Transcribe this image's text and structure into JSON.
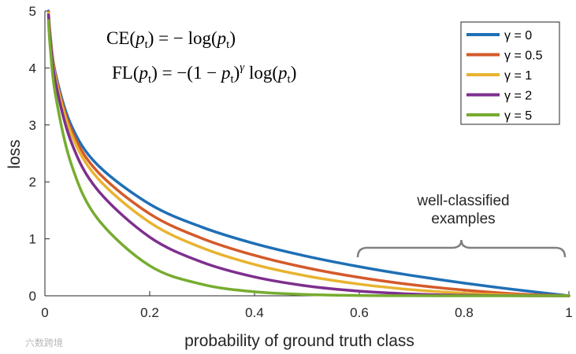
{
  "chart_data": {
    "type": "line",
    "xlabel": "probability of ground truth class",
    "ylabel": "loss",
    "xlim": [
      0,
      1
    ],
    "ylim": [
      0,
      5
    ],
    "x_ticks": [
      "0",
      "0.2",
      "0.4",
      "0.6",
      "0.8",
      "1"
    ],
    "y_ticks": [
      "0",
      "1",
      "2",
      "3",
      "4",
      "5"
    ],
    "grid": false,
    "legend_position": "top-right",
    "x": [
      0.0067,
      0.01,
      0.02,
      0.05,
      0.1,
      0.2,
      0.3,
      0.4,
      0.5,
      0.6,
      0.7,
      0.8,
      0.9,
      1.0
    ],
    "series": [
      {
        "name": "γ = 0",
        "color": "#1f6fb5",
        "values": [
          5.0,
          4.605,
          3.912,
          2.996,
          2.303,
          1.609,
          1.204,
          0.916,
          0.693,
          0.511,
          0.357,
          0.223,
          0.105,
          0.0
        ]
      },
      {
        "name": "γ = 0.5",
        "color": "#d45a2a",
        "values": [
          4.983,
          4.582,
          3.873,
          2.92,
          2.184,
          1.439,
          1.007,
          0.71,
          0.49,
          0.323,
          0.195,
          0.1,
          0.033,
          0.0
        ]
      },
      {
        "name": "γ = 1",
        "color": "#e8b330",
        "values": [
          4.967,
          4.559,
          3.834,
          2.846,
          2.072,
          1.288,
          0.843,
          0.55,
          0.347,
          0.204,
          0.107,
          0.045,
          0.011,
          0.0
        ]
      },
      {
        "name": "γ = 2",
        "color": "#7e2f8e",
        "values": [
          4.933,
          4.513,
          3.757,
          2.704,
          1.865,
          1.03,
          0.59,
          0.33,
          0.173,
          0.082,
          0.032,
          0.009,
          0.001,
          0.0
        ]
      },
      {
        "name": "γ = 5",
        "color": "#77ac30",
        "values": [
          4.834,
          4.382,
          3.537,
          2.318,
          1.36,
          0.527,
          0.202,
          0.071,
          0.022,
          0.005,
          0.001,
          0.0,
          0.0,
          0.0
        ]
      }
    ],
    "equations": {
      "ce": {
        "lhs": "CE",
        "arg": "p",
        "sub": "t",
        "rhs": " = − log(",
        "close": ")"
      },
      "fl": {
        "lhs": "FL",
        "arg": "p",
        "sub": "t",
        "rhs": " = −(1 − ",
        "exp": "γ",
        "log": " log(",
        "close": ")"
      }
    },
    "annotation": {
      "line1": "well-classified",
      "line2": "examples",
      "from_x": 0.6,
      "to_x": 1.0
    }
  },
  "watermark": "六数跨境"
}
